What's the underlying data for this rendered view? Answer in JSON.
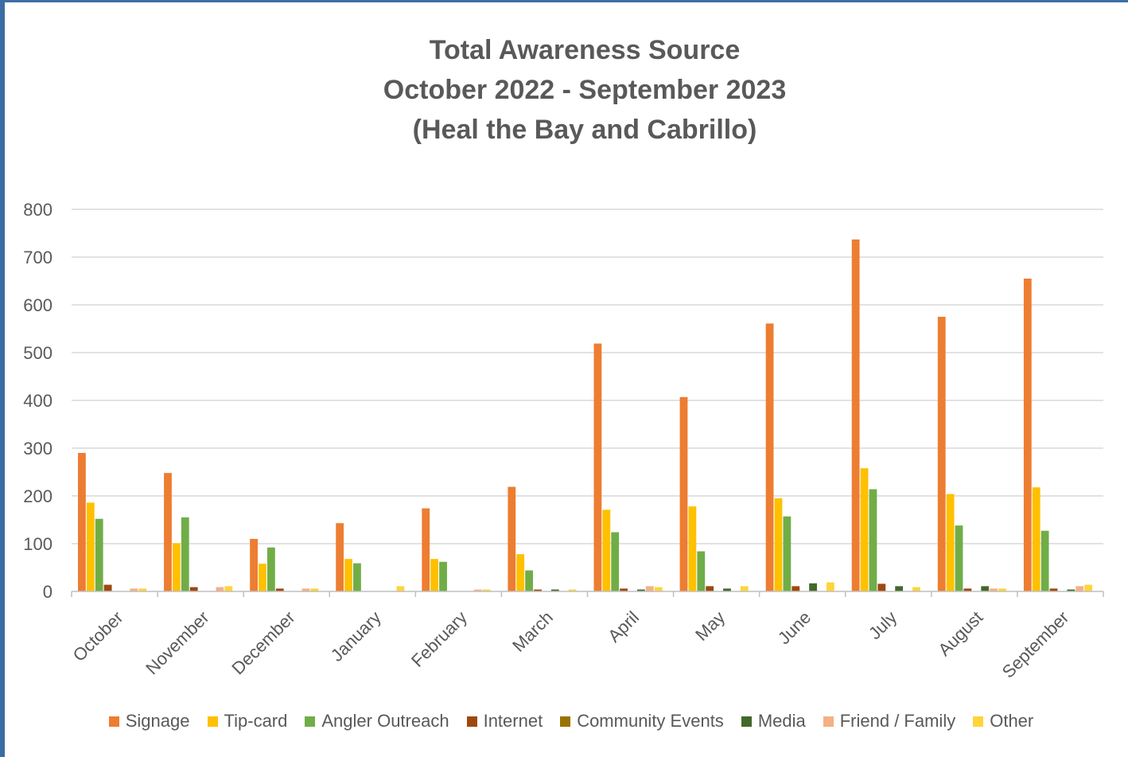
{
  "chart_data": {
    "type": "bar",
    "title_lines": [
      "Total Awareness Source",
      "October 2022 - September 2023",
      "(Heal the Bay and Cabrillo)"
    ],
    "xlabel": "",
    "ylabel": "",
    "ylim": [
      0,
      800
    ],
    "yticks": [
      "0",
      "100",
      "200",
      "300",
      "400",
      "500",
      "600",
      "700",
      "800"
    ],
    "grid": true,
    "legend_position": "bottom",
    "categories": [
      "October",
      "November",
      "December",
      "January",
      "February",
      "March",
      "April",
      "May",
      "June",
      "July",
      "August",
      "September"
    ],
    "series": [
      {
        "name": "Signage",
        "color": "#ED7D31",
        "values": [
          290,
          248,
          110,
          143,
          174,
          219,
          519,
          407,
          561,
          737,
          575,
          655
        ]
      },
      {
        "name": "Tip-card",
        "color": "#FFC000",
        "values": [
          186,
          101,
          58,
          68,
          68,
          78,
          171,
          178,
          195,
          258,
          204,
          218
        ]
      },
      {
        "name": "Angler Outreach",
        "color": "#70AD47",
        "values": [
          152,
          155,
          92,
          59,
          62,
          44,
          124,
          84,
          157,
          214,
          138,
          127
        ]
      },
      {
        "name": "Internet",
        "color": "#9E480E",
        "values": [
          14,
          9,
          6,
          0,
          0,
          4,
          6,
          11,
          11,
          16,
          6,
          6
        ]
      },
      {
        "name": "Community Events",
        "color": "#997300",
        "values": [
          0,
          0,
          0,
          0,
          0,
          0,
          0,
          0,
          0,
          0,
          0,
          0
        ]
      },
      {
        "name": "Media",
        "color": "#43682B",
        "values": [
          0,
          0,
          0,
          0,
          0,
          4,
          4,
          6,
          17,
          11,
          11,
          4
        ]
      },
      {
        "name": "Friend / Family",
        "color": "#F4B183",
        "values": [
          6,
          9,
          6,
          0,
          4,
          0,
          11,
          0,
          0,
          0,
          6,
          11
        ]
      },
      {
        "name": "Other",
        "color": "#FFD43B",
        "values": [
          6,
          11,
          6,
          11,
          4,
          4,
          9,
          11,
          19,
          9,
          6,
          14
        ]
      }
    ]
  }
}
